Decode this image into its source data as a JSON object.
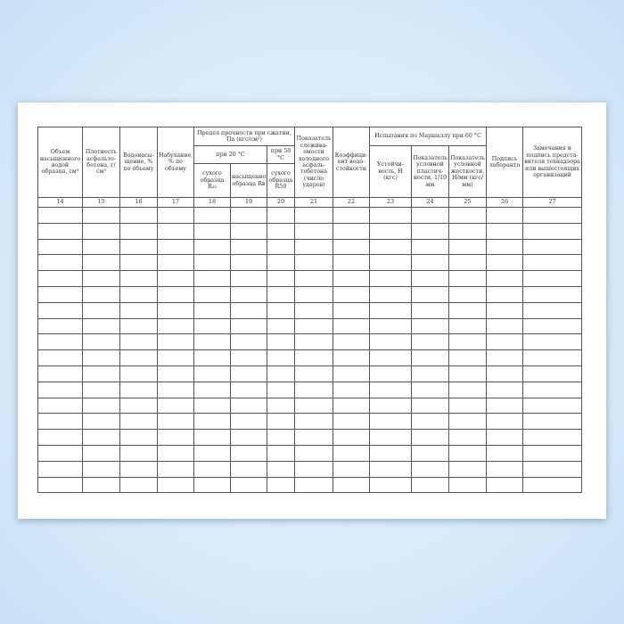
{
  "headers": {
    "c14": "Объем насыщенного водой образца, см³",
    "c15": "Плотность асфальто-бетона, г/см³",
    "c16": "Водонасы-щение, % по объему",
    "c17": "Набухание, % по объему",
    "strength": "Предел прочности при сжатии, Па (кгс/см²)",
    "at20": "при 20 °С",
    "at50": "при 50 °С",
    "c18": "сухого образца R₂₀",
    "c19": "насыщенного образца Rв",
    "c20": "сухого образца R50",
    "c21": "Показатель слежива-емости холодного асфаль-тобетона (число ударов)",
    "c22": "Коэффици-ент водо-стойкости",
    "marshall": "Испытания по Маршаллу при 60 °С",
    "c23": "Устойчи-вость, Н (кгс)",
    "c24": "Показатель условной пластич-ности, 1/10 мм",
    "c25": "Показатель условной жесткости, Н/мм (кгс/мм)",
    "c26": "Подпись лаборанта",
    "c27": "Замечания и подпись предста-вителя технадзора или вышестоящих организаций"
  },
  "column_numbers": [
    "14",
    "15",
    "16",
    "17",
    "18",
    "19",
    "20",
    "21",
    "22",
    "23",
    "24",
    "25",
    "26",
    "27"
  ]
}
